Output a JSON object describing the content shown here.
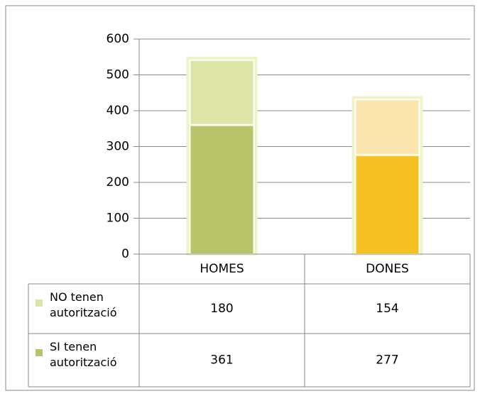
{
  "chart_data": {
    "type": "stacked_bar",
    "categories": [
      "HOMES",
      "DONES"
    ],
    "series": [
      {
        "name": "SI tenen autorització",
        "color": "#b9c36a",
        "point_colors": [
          "#b9c36a",
          "#f5c022"
        ],
        "values": [
          361,
          277
        ]
      },
      {
        "name": "NO tenen autorització",
        "color": "#dde4a8",
        "point_colors": [
          "#dde4a8",
          "#fbe6b0"
        ],
        "values": [
          180,
          154
        ]
      }
    ],
    "ylim": [
      0,
      600
    ],
    "yticks": [
      0,
      100,
      200,
      300,
      400,
      500,
      600
    ],
    "grid": true,
    "data_table": true
  }
}
